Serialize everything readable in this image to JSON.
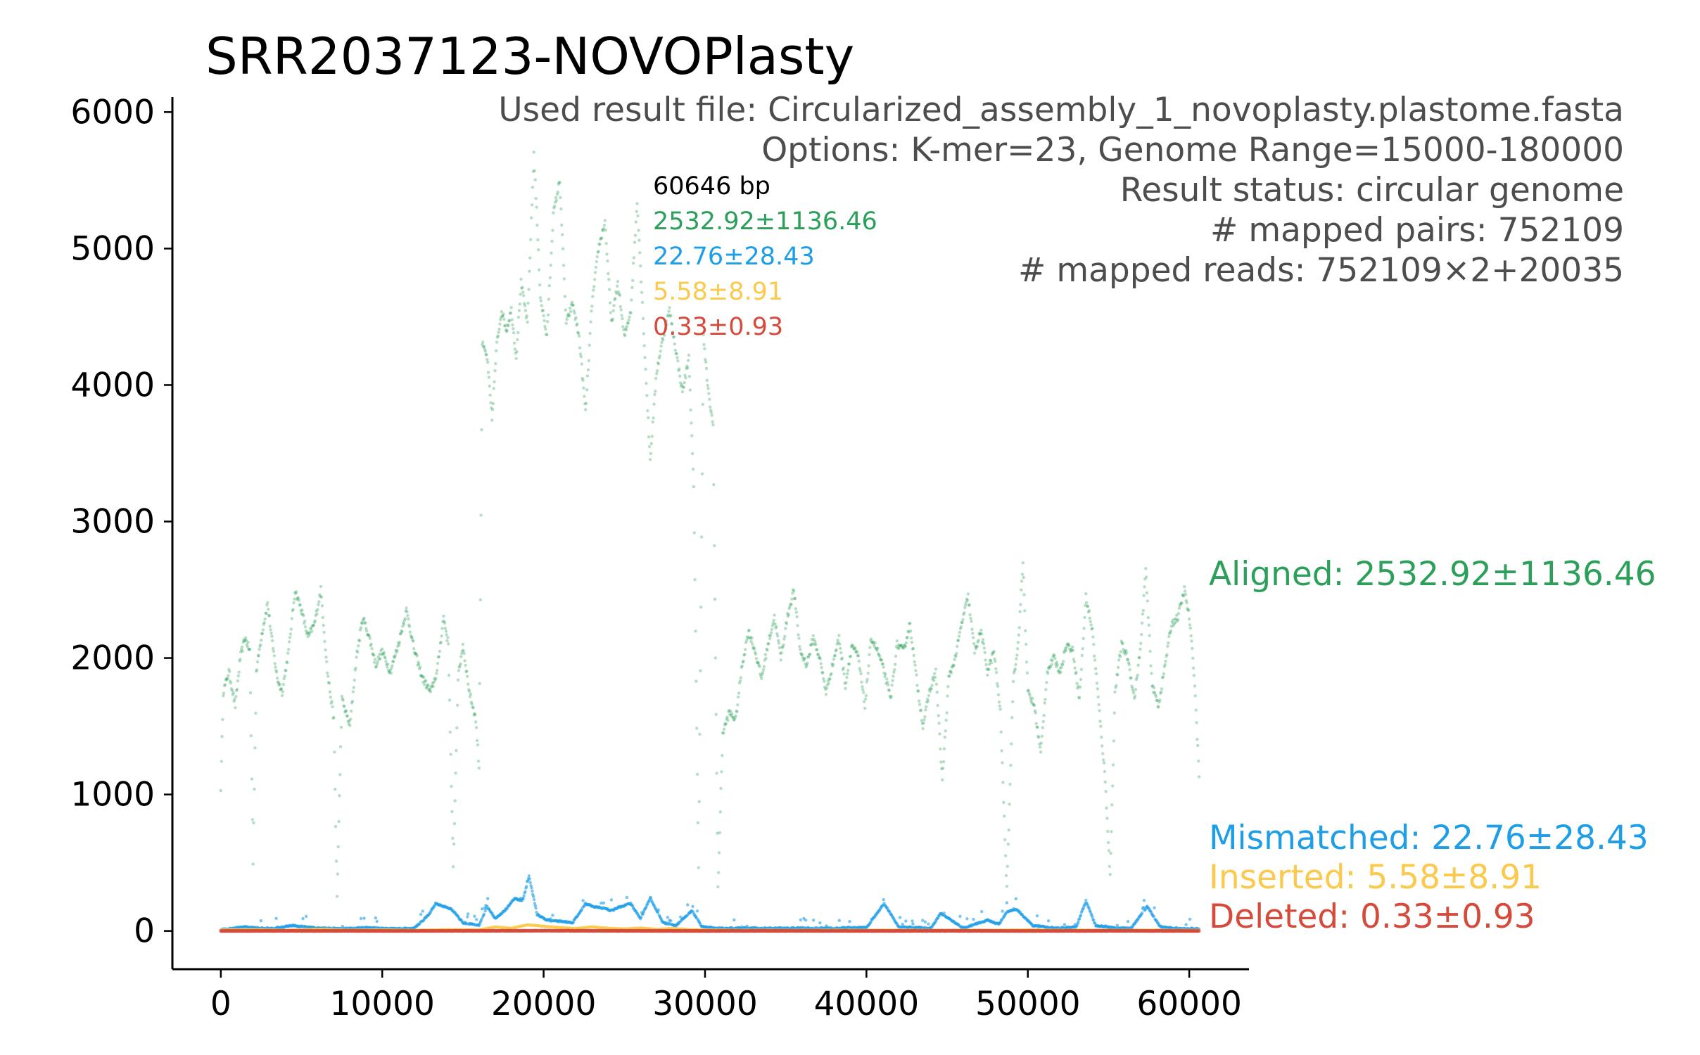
{
  "chart_data": {
    "type": "scatter",
    "title": "SRR2037123-NOVOPlasty",
    "xlabel": "",
    "ylabel": "",
    "xlim": [
      -3000,
      63700
    ],
    "ylim": [
      -280,
      6110
    ],
    "xticks": [
      0,
      10000,
      20000,
      30000,
      40000,
      50000,
      60000
    ],
    "yticks": [
      0,
      1000,
      2000,
      3000,
      4000,
      5000,
      6000
    ],
    "info_lines": [
      "Used result file: Circularized_assembly_1_novoplasty.plastome.fasta",
      "Options: K-mer=23, Genome Range=15000-180000",
      "Result status: circular genome",
      "# mapped pairs: 752109",
      "# mapped reads: 752109×2+20035"
    ],
    "inner_stats": {
      "length": "60646 bp",
      "aligned": "2532.92±1136.46",
      "mismatched": "22.76±28.43",
      "inserted": "5.58±8.91",
      "deleted": "0.33±0.93"
    },
    "series": [
      {
        "name": "Aligned",
        "legend": "Aligned: 2532.92±1136.46",
        "color": "#2ca05a",
        "points": [
          [
            0,
            1050
          ],
          [
            150,
            1750
          ],
          [
            500,
            1900
          ],
          [
            900,
            1650
          ],
          [
            1200,
            2000
          ],
          [
            1500,
            2150
          ],
          [
            1800,
            2050
          ],
          [
            2000,
            500
          ],
          [
            2200,
            1900
          ],
          [
            2500,
            2150
          ],
          [
            2900,
            2400
          ],
          [
            3200,
            2100
          ],
          [
            3500,
            1850
          ],
          [
            3800,
            1750
          ],
          [
            4200,
            2050
          ],
          [
            4600,
            2500
          ],
          [
            5000,
            2350
          ],
          [
            5400,
            2150
          ],
          [
            5800,
            2250
          ],
          [
            6200,
            2500
          ],
          [
            6600,
            1900
          ],
          [
            7000,
            1550
          ],
          [
            7200,
            250
          ],
          [
            7500,
            1700
          ],
          [
            8000,
            1500
          ],
          [
            8400,
            2000
          ],
          [
            8800,
            2300
          ],
          [
            9200,
            2150
          ],
          [
            9600,
            1950
          ],
          [
            10000,
            2050
          ],
          [
            10500,
            1900
          ],
          [
            11000,
            2100
          ],
          [
            11500,
            2350
          ],
          [
            12000,
            2050
          ],
          [
            12500,
            1850
          ],
          [
            13000,
            1750
          ],
          [
            13400,
            1900
          ],
          [
            13800,
            2300
          ],
          [
            14100,
            2100
          ],
          [
            14400,
            450
          ],
          [
            14700,
            1850
          ],
          [
            15000,
            2100
          ],
          [
            15400,
            1750
          ],
          [
            15800,
            1550
          ],
          [
            16000,
            1200
          ],
          [
            16200,
            4300
          ],
          [
            16500,
            4200
          ],
          [
            16800,
            3750
          ],
          [
            17100,
            4300
          ],
          [
            17400,
            4550
          ],
          [
            17700,
            4400
          ],
          [
            18000,
            4550
          ],
          [
            18300,
            4200
          ],
          [
            18600,
            4750
          ],
          [
            19000,
            4450
          ],
          [
            19400,
            5700
          ],
          [
            19800,
            4650
          ],
          [
            20200,
            4350
          ],
          [
            20600,
            5250
          ],
          [
            21000,
            5500
          ],
          [
            21400,
            4450
          ],
          [
            21800,
            4600
          ],
          [
            22200,
            4350
          ],
          [
            22600,
            3800
          ],
          [
            23000,
            4600
          ],
          [
            23400,
            5000
          ],
          [
            23800,
            5200
          ],
          [
            24200,
            4450
          ],
          [
            24600,
            4750
          ],
          [
            25000,
            4350
          ],
          [
            25400,
            4550
          ],
          [
            25800,
            5350
          ],
          [
            26200,
            4400
          ],
          [
            26600,
            3450
          ],
          [
            27000,
            4100
          ],
          [
            27400,
            4350
          ],
          [
            27800,
            4550
          ],
          [
            28200,
            4250
          ],
          [
            28600,
            3950
          ],
          [
            29000,
            4200
          ],
          [
            29300,
            3250
          ],
          [
            29600,
            450
          ],
          [
            29900,
            4350
          ],
          [
            30200,
            3950
          ],
          [
            30500,
            3700
          ],
          [
            30800,
            300
          ],
          [
            31100,
            1450
          ],
          [
            31500,
            1600
          ],
          [
            31900,
            1550
          ],
          [
            32300,
            1950
          ],
          [
            32700,
            2200
          ],
          [
            33100,
            2050
          ],
          [
            33500,
            1850
          ],
          [
            33900,
            2100
          ],
          [
            34300,
            2300
          ],
          [
            34700,
            2000
          ],
          [
            35100,
            2300
          ],
          [
            35500,
            2500
          ],
          [
            35900,
            2050
          ],
          [
            36300,
            1950
          ],
          [
            36700,
            2150
          ],
          [
            37100,
            2000
          ],
          [
            37500,
            1750
          ],
          [
            37900,
            1950
          ],
          [
            38300,
            2150
          ],
          [
            38700,
            1800
          ],
          [
            39100,
            2100
          ],
          [
            39500,
            2000
          ],
          [
            39900,
            1650
          ],
          [
            40300,
            2150
          ],
          [
            40700,
            2050
          ],
          [
            41100,
            1900
          ],
          [
            41500,
            1700
          ],
          [
            41900,
            2100
          ],
          [
            42300,
            2050
          ],
          [
            42700,
            2250
          ],
          [
            43100,
            1850
          ],
          [
            43500,
            1500
          ],
          [
            43900,
            1750
          ],
          [
            44300,
            1900
          ],
          [
            44700,
            1100
          ],
          [
            45100,
            1850
          ],
          [
            45500,
            2000
          ],
          [
            45900,
            2250
          ],
          [
            46300,
            2450
          ],
          [
            46700,
            2050
          ],
          [
            47100,
            2200
          ],
          [
            47500,
            1900
          ],
          [
            47900,
            2050
          ],
          [
            48300,
            1600
          ],
          [
            48700,
            300
          ],
          [
            49100,
            1850
          ],
          [
            49400,
            2100
          ],
          [
            49700,
            2700
          ],
          [
            50000,
            1750
          ],
          [
            50400,
            1650
          ],
          [
            50800,
            1300
          ],
          [
            51200,
            1900
          ],
          [
            51600,
            2000
          ],
          [
            52000,
            1900
          ],
          [
            52400,
            2100
          ],
          [
            52800,
            2050
          ],
          [
            53200,
            1700
          ],
          [
            53600,
            2450
          ],
          [
            54000,
            2200
          ],
          [
            54400,
            1650
          ],
          [
            54800,
            1100
          ],
          [
            55100,
            400
          ],
          [
            55400,
            1750
          ],
          [
            55800,
            2100
          ],
          [
            56200,
            2000
          ],
          [
            56600,
            1700
          ],
          [
            57000,
            2100
          ],
          [
            57300,
            2650
          ],
          [
            57700,
            1800
          ],
          [
            58100,
            1650
          ],
          [
            58500,
            1950
          ],
          [
            58900,
            2250
          ],
          [
            59300,
            2300
          ],
          [
            59700,
            2500
          ],
          [
            60000,
            2300
          ],
          [
            60300,
            1900
          ],
          [
            60646,
            1050
          ]
        ]
      },
      {
        "name": "Mismatched",
        "legend": "Mismatched: 22.76±28.43",
        "color": "#1f9ee8",
        "points": [
          [
            0,
            10
          ],
          [
            1500,
            30
          ],
          [
            3000,
            15
          ],
          [
            4500,
            40
          ],
          [
            6000,
            20
          ],
          [
            7500,
            15
          ],
          [
            9000,
            25
          ],
          [
            10500,
            15
          ],
          [
            12000,
            20
          ],
          [
            12900,
            120
          ],
          [
            13300,
            200
          ],
          [
            13800,
            180
          ],
          [
            14300,
            160
          ],
          [
            15000,
            60
          ],
          [
            16000,
            40
          ],
          [
            16500,
            180
          ],
          [
            17000,
            90
          ],
          [
            17600,
            150
          ],
          [
            18200,
            240
          ],
          [
            18700,
            220
          ],
          [
            19100,
            400
          ],
          [
            19600,
            120
          ],
          [
            20200,
            80
          ],
          [
            21000,
            70
          ],
          [
            21800,
            60
          ],
          [
            22600,
            200
          ],
          [
            23100,
            180
          ],
          [
            23600,
            170
          ],
          [
            24200,
            150
          ],
          [
            24800,
            180
          ],
          [
            25400,
            200
          ],
          [
            26000,
            90
          ],
          [
            26600,
            240
          ],
          [
            27400,
            60
          ],
          [
            28200,
            40
          ],
          [
            29200,
            150
          ],
          [
            29800,
            30
          ],
          [
            30800,
            20
          ],
          [
            32000,
            20
          ],
          [
            34000,
            20
          ],
          [
            36000,
            20
          ],
          [
            38000,
            20
          ],
          [
            40000,
            25
          ],
          [
            41100,
            200
          ],
          [
            42000,
            30
          ],
          [
            44000,
            20
          ],
          [
            44600,
            130
          ],
          [
            46000,
            20
          ],
          [
            47500,
            80
          ],
          [
            48200,
            50
          ],
          [
            48700,
            140
          ],
          [
            49300,
            160
          ],
          [
            50300,
            40
          ],
          [
            51000,
            30
          ],
          [
            52000,
            20
          ],
          [
            53000,
            30
          ],
          [
            53600,
            220
          ],
          [
            54200,
            40
          ],
          [
            55500,
            20
          ],
          [
            56400,
            20
          ],
          [
            57400,
            180
          ],
          [
            58200,
            30
          ],
          [
            59000,
            20
          ],
          [
            60646,
            15
          ]
        ]
      },
      {
        "name": "Inserted",
        "legend": "Inserted: 5.58±8.91",
        "color": "#fbc94c",
        "points": [
          [
            0,
            8
          ],
          [
            2000,
            10
          ],
          [
            4000,
            5
          ],
          [
            6000,
            12
          ],
          [
            8000,
            6
          ],
          [
            10000,
            8
          ],
          [
            12000,
            5
          ],
          [
            14000,
            10
          ],
          [
            16000,
            8
          ],
          [
            17000,
            30
          ],
          [
            18000,
            20
          ],
          [
            19000,
            45
          ],
          [
            20000,
            35
          ],
          [
            21000,
            25
          ],
          [
            22000,
            18
          ],
          [
            23000,
            30
          ],
          [
            24000,
            20
          ],
          [
            25000,
            15
          ],
          [
            26000,
            22
          ],
          [
            27000,
            12
          ],
          [
            28000,
            18
          ],
          [
            29000,
            10
          ],
          [
            30000,
            8
          ],
          [
            32000,
            5
          ],
          [
            34000,
            6
          ],
          [
            36000,
            5
          ],
          [
            38000,
            6
          ],
          [
            40000,
            5
          ],
          [
            42000,
            6
          ],
          [
            44000,
            5
          ],
          [
            46000,
            6
          ],
          [
            48000,
            5
          ],
          [
            50000,
            8
          ],
          [
            52000,
            5
          ],
          [
            54000,
            6
          ],
          [
            56000,
            5
          ],
          [
            58000,
            6
          ],
          [
            60646,
            5
          ]
        ]
      },
      {
        "name": "Deleted",
        "legend": "Deleted: 0.33±0.93",
        "color": "#d64a3c",
        "points": [
          [
            0,
            0
          ],
          [
            5000,
            1
          ],
          [
            10000,
            0
          ],
          [
            15000,
            1
          ],
          [
            20000,
            2
          ],
          [
            25000,
            1
          ],
          [
            30000,
            0
          ],
          [
            35000,
            1
          ],
          [
            40000,
            0
          ],
          [
            45000,
            1
          ],
          [
            50000,
            0
          ],
          [
            55000,
            1
          ],
          [
            60646,
            0
          ]
        ]
      }
    ]
  }
}
